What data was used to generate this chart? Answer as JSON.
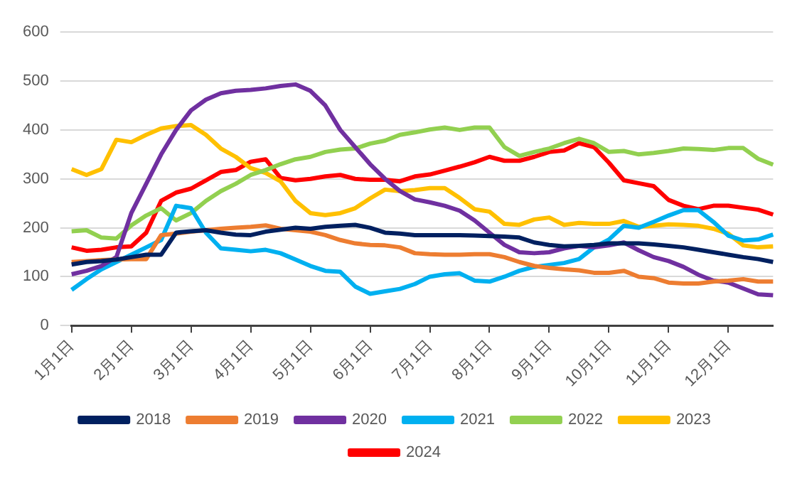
{
  "chart_data": {
    "type": "line",
    "categories": [
      "1月1日",
      null,
      null,
      null,
      "2月1日",
      null,
      null,
      null,
      "3月1日",
      null,
      null,
      null,
      "4月1日",
      null,
      null,
      null,
      "5月1日",
      null,
      null,
      null,
      "6月1日",
      null,
      null,
      null,
      "7月1日",
      null,
      null,
      null,
      "8月1日",
      null,
      null,
      null,
      "9月1日",
      null,
      null,
      null,
      "10月1日",
      null,
      null,
      null,
      "11月1日",
      null,
      null,
      null,
      "12月1日",
      null,
      null,
      null
    ],
    "series": [
      {
        "name": "2018",
        "color": "#002060",
        "values": [
          125,
          130,
          132,
          135,
          140,
          145,
          145,
          190,
          193,
          195,
          190,
          186,
          185,
          192,
          196,
          200,
          198,
          202,
          204,
          206,
          200,
          190,
          188,
          185,
          185,
          185,
          185,
          184,
          183,
          182,
          180,
          170,
          165,
          162,
          163,
          165,
          168,
          168,
          168,
          166,
          163,
          160,
          155,
          150,
          145,
          140,
          136,
          130
        ]
      },
      {
        "name": "2019",
        "color": "#ed7d31",
        "values": [
          130,
          132,
          134,
          135,
          136,
          136,
          185,
          188,
          192,
          195,
          198,
          200,
          202,
          205,
          198,
          195,
          192,
          185,
          175,
          168,
          165,
          164,
          160,
          148,
          146,
          145,
          145,
          146,
          146,
          140,
          130,
          122,
          118,
          115,
          113,
          108,
          108,
          112,
          100,
          97,
          88,
          86,
          86,
          90,
          92,
          95,
          90,
          90
        ]
      },
      {
        "name": "2020",
        "color": "#7030a0",
        "values": [
          105,
          112,
          122,
          140,
          230,
          290,
          350,
          400,
          440,
          462,
          475,
          480,
          482,
          485,
          490,
          493,
          480,
          450,
          400,
          365,
          330,
          300,
          275,
          258,
          252,
          245,
          235,
          215,
          190,
          165,
          150,
          148,
          150,
          158,
          163,
          160,
          164,
          170,
          154,
          140,
          132,
          120,
          104,
          92,
          88,
          76,
          64,
          62
        ]
      },
      {
        "name": "2021",
        "color": "#00b0f0",
        "values": [
          73,
          95,
          115,
          130,
          145,
          160,
          175,
          245,
          240,
          190,
          158,
          155,
          152,
          155,
          148,
          135,
          122,
          112,
          110,
          80,
          65,
          70,
          75,
          85,
          100,
          105,
          107,
          92,
          90,
          100,
          112,
          120,
          124,
          128,
          136,
          160,
          176,
          204,
          200,
          212,
          225,
          236,
          236,
          212,
          184,
          174,
          176,
          186
        ]
      },
      {
        "name": "2022",
        "color": "#92d050",
        "values": [
          193,
          195,
          180,
          178,
          205,
          225,
          240,
          215,
          230,
          255,
          275,
          290,
          308,
          318,
          330,
          340,
          345,
          355,
          360,
          362,
          372,
          378,
          390,
          395,
          401,
          405,
          400,
          405,
          405,
          365,
          347,
          355,
          362,
          373,
          382,
          373,
          355,
          357,
          350,
          353,
          357,
          362,
          361,
          359,
          363,
          363,
          341,
          329
        ]
      },
      {
        "name": "2023",
        "color": "#ffc000",
        "values": [
          320,
          308,
          320,
          380,
          375,
          390,
          403,
          408,
          410,
          390,
          362,
          345,
          322,
          312,
          295,
          255,
          230,
          226,
          230,
          240,
          260,
          278,
          275,
          277,
          281,
          281,
          261,
          238,
          233,
          208,
          206,
          217,
          221,
          206,
          210,
          208,
          208,
          214,
          202,
          204,
          207,
          206,
          204,
          198,
          188,
          164,
          160,
          162
        ]
      },
      {
        "name": "2024",
        "color": "#ff0000",
        "values": [
          160,
          153,
          155,
          160,
          162,
          190,
          255,
          272,
          280,
          297,
          314,
          318,
          335,
          340,
          302,
          297,
          300,
          305,
          308,
          300,
          298,
          298,
          295,
          305,
          309,
          317,
          325,
          334,
          345,
          337,
          337,
          345,
          355,
          358,
          373,
          365,
          333,
          297,
          291,
          285,
          257,
          245,
          238,
          245,
          245,
          241,
          237,
          227
        ]
      }
    ],
    "ylim": [
      0,
      600
    ],
    "yticks": [
      0,
      100,
      200,
      300,
      400,
      500,
      600
    ],
    "grid": "y",
    "legend": "bottom"
  }
}
